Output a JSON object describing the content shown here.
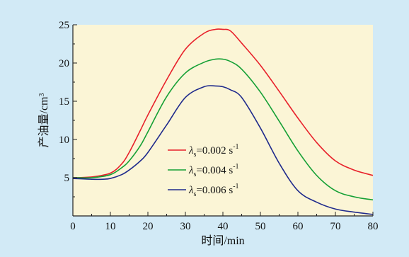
{
  "colors": {
    "background": "#d2eaf6",
    "plot_background": "#fbf5d6",
    "axis": "#222222"
  },
  "chart_data": {
    "type": "line",
    "title": "",
    "xlabel": "时间/min",
    "ylabel": "产油量/cm",
    "ylabel_superscript": "3",
    "xlim": [
      0,
      80
    ],
    "ylim": [
      0,
      25
    ],
    "x_ticks": [
      0,
      10,
      20,
      30,
      40,
      50,
      60,
      70,
      80
    ],
    "y_ticks": [
      5,
      10,
      15,
      20,
      25
    ],
    "grid": false,
    "legend_position": "center-right",
    "legend_symbol": "λ",
    "legend_subscript": "s",
    "legend_unit": "s",
    "legend_unit_superscript": "-1",
    "series": [
      {
        "name": "λs=0.002 s-1",
        "legend_value": "=0.002",
        "color": "#e8202a",
        "x": [
          0,
          5,
          10,
          13,
          15,
          18,
          20,
          25,
          30,
          35,
          38,
          40,
          42,
          45,
          50,
          55,
          60,
          65,
          70,
          75,
          80
        ],
        "y": [
          5.0,
          5.1,
          5.6,
          6.8,
          8.3,
          11.2,
          13.2,
          17.8,
          21.8,
          23.9,
          24.4,
          24.4,
          24.2,
          22.6,
          19.7,
          16.3,
          12.8,
          9.6,
          7.2,
          6.0,
          5.3
        ]
      },
      {
        "name": "λs=0.004 s-1",
        "legend_value": "=0.004",
        "color": "#15a035",
        "x": [
          0,
          5,
          10,
          13,
          15,
          18,
          20,
          25,
          30,
          35,
          38,
          40,
          42,
          45,
          50,
          55,
          60,
          65,
          70,
          75,
          80
        ],
        "y": [
          5.0,
          5.0,
          5.4,
          6.3,
          7.2,
          9.2,
          11.0,
          15.6,
          18.7,
          20.1,
          20.5,
          20.5,
          20.2,
          19.2,
          16.2,
          12.4,
          8.5,
          5.3,
          3.3,
          2.5,
          2.1
        ]
      },
      {
        "name": "λs=0.006 s-1",
        "legend_value": "=0.006",
        "color": "#1f2a8c",
        "x": [
          0,
          5,
          8,
          10,
          13,
          15,
          18,
          20,
          25,
          30,
          35,
          38,
          40,
          42,
          45,
          50,
          55,
          60,
          65,
          70,
          75,
          80
        ],
        "y": [
          4.9,
          4.8,
          4.8,
          4.9,
          5.4,
          6.0,
          7.2,
          8.3,
          11.9,
          15.5,
          16.9,
          17.0,
          16.9,
          16.5,
          15.5,
          11.5,
          6.9,
          3.3,
          1.8,
          0.9,
          0.5,
          0.2
        ]
      }
    ]
  }
}
